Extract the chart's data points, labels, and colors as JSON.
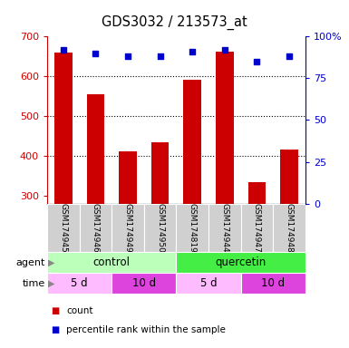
{
  "title": "GDS3032 / 213573_at",
  "samples": [
    "GSM174945",
    "GSM174946",
    "GSM174949",
    "GSM174950",
    "GSM174819",
    "GSM174944",
    "GSM174947",
    "GSM174948"
  ],
  "bar_values": [
    660,
    555,
    412,
    435,
    592,
    662,
    333,
    415
  ],
  "percentile_values": [
    92,
    90,
    88,
    88,
    91,
    92,
    85,
    88
  ],
  "bar_color": "#cc0000",
  "dot_color": "#0000cc",
  "ymin": 280,
  "ymax": 700,
  "yticks_left": [
    300,
    400,
    500,
    600,
    700
  ],
  "yticks_right": [
    0,
    25,
    50,
    75,
    100
  ],
  "agent_labels": [
    {
      "text": "control",
      "start": 0,
      "end": 4,
      "color_light": true
    },
    {
      "text": "quercetin",
      "start": 4,
      "end": 8,
      "color_light": false
    }
  ],
  "time_labels": [
    {
      "text": "5 d",
      "start": 0,
      "end": 2,
      "color_light": true
    },
    {
      "text": "10 d",
      "start": 2,
      "end": 4,
      "color_light": false
    },
    {
      "text": "5 d",
      "start": 4,
      "end": 6,
      "color_light": true
    },
    {
      "text": "10 d",
      "start": 6,
      "end": 8,
      "color_light": false
    }
  ],
  "legend_count_color": "#cc0000",
  "legend_dot_color": "#0000cc",
  "left_axis_color": "#cc0000",
  "right_axis_color": "#0000cc",
  "bar_width": 0.55,
  "agent_color_light": "#bbffbb",
  "agent_color_dark": "#44ee44",
  "time_color_light": "#ffbbff",
  "time_color_dark": "#dd44dd",
  "sample_box_color": "#d0d0d0",
  "fig_width": 3.85,
  "fig_height": 3.84,
  "dpi": 100
}
